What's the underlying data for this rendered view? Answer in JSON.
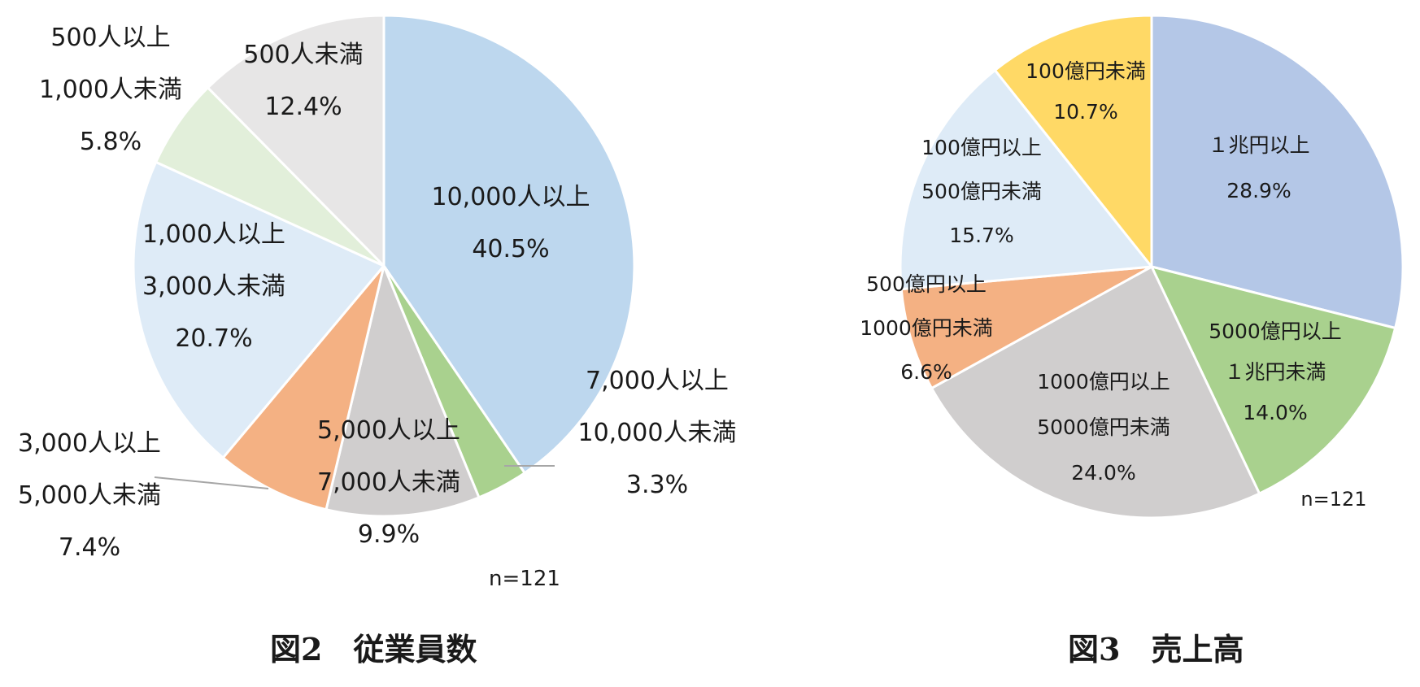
{
  "chart_data": [
    {
      "type": "pie",
      "title": "図2　従業員数",
      "n_label": "n=121",
      "slices": [
        {
          "label": [
            "10,000人以上"
          ],
          "value": 40.5,
          "pct": "40.5%",
          "color": "#bdd7ee"
        },
        {
          "label": [
            "7,000人以上",
            "10,000人未満"
          ],
          "value": 3.3,
          "pct": "3.3%",
          "color": "#a9d18e"
        },
        {
          "label": [
            "5,000人以上",
            "7,000人未満"
          ],
          "value": 9.9,
          "pct": "9.9%",
          "color": "#d0cece"
        },
        {
          "label": [
            "3,000人以上",
            "5,000人未満"
          ],
          "value": 7.4,
          "pct": "7.4%",
          "color": "#f4b183"
        },
        {
          "label": [
            "1,000人以上",
            "3,000人未満"
          ],
          "value": 20.7,
          "pct": "20.7%",
          "color": "#deebf7"
        },
        {
          "label": [
            "500人以上",
            "1,000人未満"
          ],
          "value": 5.8,
          "pct": "5.8%",
          "color": "#e2efda"
        },
        {
          "label": [
            "500人未満"
          ],
          "value": 12.4,
          "pct": "12.4%",
          "color": "#e7e6e6"
        }
      ]
    },
    {
      "type": "pie",
      "title": "図3　売上高",
      "n_label": "n=121",
      "slices": [
        {
          "label": [
            "１兆円以上"
          ],
          "value": 28.9,
          "pct": "28.9%",
          "color": "#b4c7e7"
        },
        {
          "label": [
            "5000億円以上",
            "１兆円未満"
          ],
          "value": 14.0,
          "pct": "14.0%",
          "color": "#a9d18e"
        },
        {
          "label": [
            "1000億円以上",
            "5000億円未満"
          ],
          "value": 24.0,
          "pct": "24.0%",
          "color": "#d0cece"
        },
        {
          "label": [
            "500億円以上",
            "1000億円未満"
          ],
          "value": 6.6,
          "pct": "6.6%",
          "color": "#f4b183"
        },
        {
          "label": [
            "100億円以上",
            "500億円未満"
          ],
          "value": 15.7,
          "pct": "15.7%",
          "color": "#deebf7"
        },
        {
          "label": [
            "100億円未満"
          ],
          "value": 10.7,
          "pct": "10.7%",
          "color": "#ffd966"
        }
      ]
    }
  ]
}
